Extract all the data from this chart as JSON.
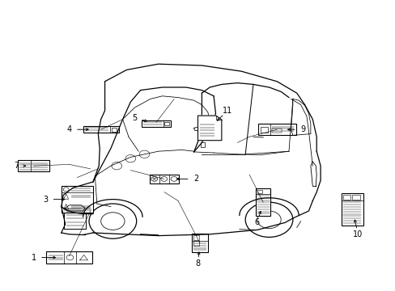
{
  "bg_color": "#ffffff",
  "line_color": "#000000",
  "figsize": [
    4.89,
    3.6
  ],
  "dpi": 100,
  "labels": [
    {
      "num": "1",
      "nx": 0.085,
      "ny": 0.115,
      "ix": 0.175,
      "iy": 0.115,
      "type": "tire_wide"
    },
    {
      "num": "2",
      "nx": 0.495,
      "ny": 0.385,
      "ix": 0.415,
      "iy": 0.385,
      "type": "small_3btn"
    },
    {
      "num": "3",
      "nx": 0.115,
      "ny": 0.315,
      "ix": 0.195,
      "iy": 0.315,
      "type": "warning_tall"
    },
    {
      "num": "4",
      "nx": 0.175,
      "ny": 0.555,
      "ix": 0.255,
      "iy": 0.555,
      "type": "long_horiz"
    },
    {
      "num": "5",
      "nx": 0.34,
      "ny": 0.595,
      "ix": 0.395,
      "iy": 0.575,
      "type": "medium_horiz"
    },
    {
      "num": "6",
      "nx": 0.65,
      "ny": 0.235,
      "ix": 0.665,
      "iy": 0.305,
      "type": "tall_narrow"
    },
    {
      "num": "7",
      "nx": 0.042,
      "ny": 0.43,
      "ix": 0.085,
      "iy": 0.43,
      "type": "wide_card"
    },
    {
      "num": "8",
      "nx": 0.5,
      "ny": 0.095,
      "ix": 0.505,
      "iy": 0.165,
      "type": "small_tall2"
    },
    {
      "num": "9",
      "nx": 0.765,
      "ny": 0.555,
      "ix": 0.7,
      "iy": 0.555,
      "type": "rect_card"
    },
    {
      "num": "10",
      "nx": 0.905,
      "ny": 0.195,
      "ix": 0.89,
      "iy": 0.28,
      "type": "tall_wide"
    },
    {
      "num": "11",
      "nx": 0.575,
      "ny": 0.62,
      "ix": 0.53,
      "iy": 0.56,
      "type": "page_doc"
    }
  ]
}
